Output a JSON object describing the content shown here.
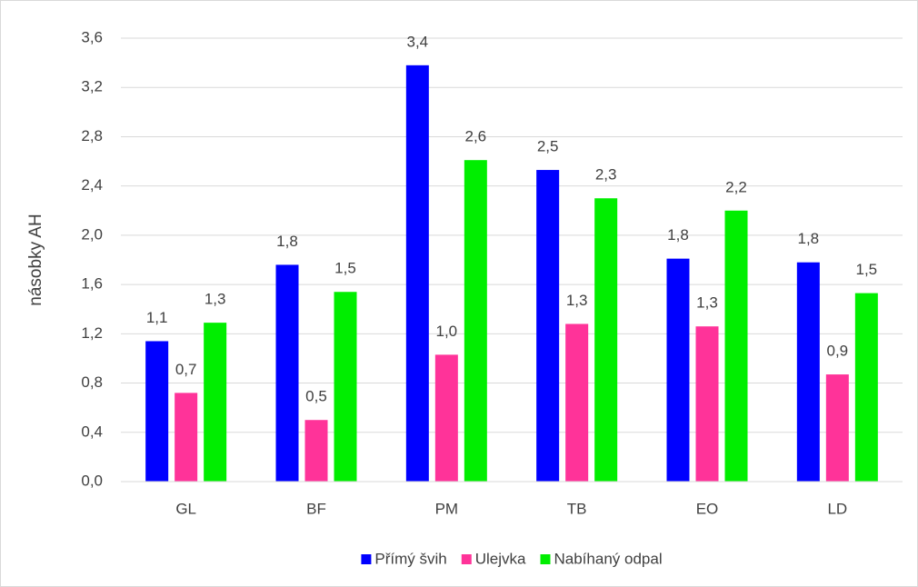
{
  "chart_data": {
    "type": "bar",
    "y_axis_label": "násobky AH",
    "categories": [
      "GL",
      "BF",
      "PM",
      "TB",
      "EO",
      "LD"
    ],
    "series": [
      {
        "name": "Přímý švih",
        "color": "#0000ff",
        "values": [
          1.14,
          1.76,
          3.38,
          2.53,
          1.81,
          1.78
        ],
        "value_labels": [
          "1,1",
          "1,8",
          "3,4",
          "2,5",
          "1,8",
          "1,8"
        ]
      },
      {
        "name": "Ulejvka",
        "color": "#ff3399",
        "values": [
          0.72,
          0.5,
          1.03,
          1.28,
          1.26,
          0.87
        ],
        "value_labels": [
          "0,7",
          "0,5",
          "1,0",
          "1,3",
          "1,3",
          "0,9"
        ]
      },
      {
        "name": "Nabíhaný odpal",
        "color": "#00ee00",
        "values": [
          1.29,
          1.54,
          2.61,
          2.3,
          2.2,
          1.53
        ],
        "value_labels": [
          "1,3",
          "1,5",
          "2,6",
          "2,3",
          "2,2",
          "1,5"
        ]
      }
    ],
    "ylim": [
      0,
      3.6
    ],
    "yticks": [
      {
        "value": 0,
        "label": "0,0"
      },
      {
        "value": 0.4,
        "label": "0,4"
      },
      {
        "value": 0.8,
        "label": "0,8"
      },
      {
        "value": 1.2,
        "label": "1,2"
      },
      {
        "value": 1.6,
        "label": "1,6"
      },
      {
        "value": 2.0,
        "label": "2,0"
      },
      {
        "value": 2.4,
        "label": "2,4"
      },
      {
        "value": 2.8,
        "label": "2,8"
      },
      {
        "value": 3.2,
        "label": "3,2"
      },
      {
        "value": 3.6,
        "label": "3,6"
      }
    ],
    "grid": true,
    "legend": "bottom"
  }
}
